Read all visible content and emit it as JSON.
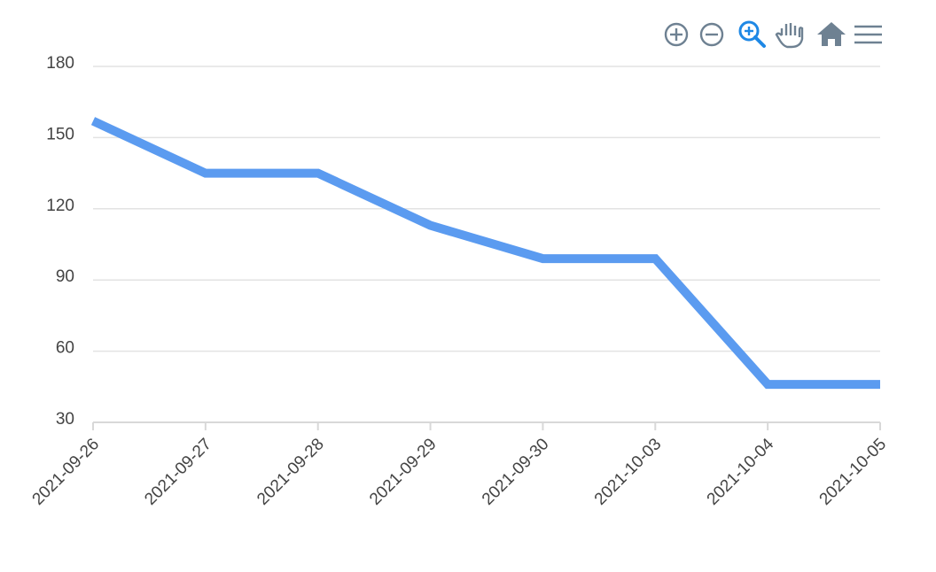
{
  "chart_data": {
    "type": "line",
    "categories": [
      "2021-09-26",
      "2021-09-27",
      "2021-09-28",
      "2021-09-29",
      "2021-09-30",
      "2021-10-03",
      "2021-10-04",
      "2021-10-05"
    ],
    "series": [
      {
        "color": "#5b9bf0",
        "values": [
          157,
          135,
          135,
          113,
          99,
          99,
          46,
          46
        ]
      }
    ],
    "ylim": [
      30,
      180
    ],
    "yticks": [
      30,
      60,
      90,
      120,
      150,
      180
    ],
    "grid": true
  }
}
